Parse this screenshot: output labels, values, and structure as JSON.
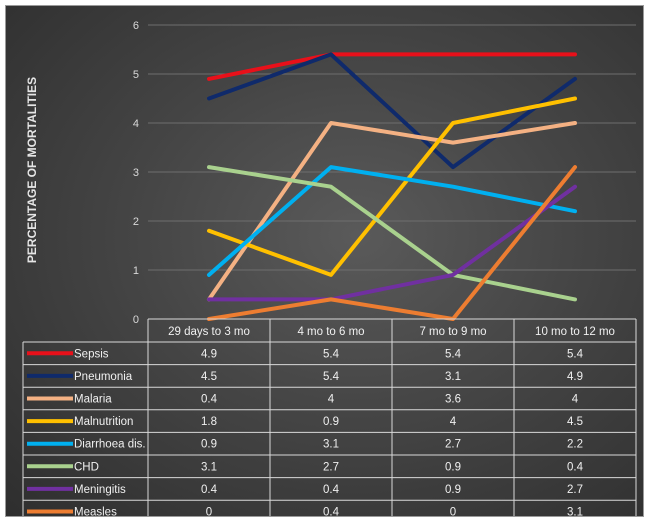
{
  "chart_data": {
    "type": "line",
    "title": "",
    "xlabel": "",
    "ylabel": "PERCENTAGE OF MORTALITIES",
    "ylim": [
      0,
      6
    ],
    "yticks": [
      0,
      1,
      2,
      3,
      4,
      5,
      6
    ],
    "grid": true,
    "legend": "data-table-below",
    "categories": [
      "29 days to 3 mo",
      "4 mo to 6 mo",
      "7 mo to 9 mo",
      "10 mo to 12 mo"
    ],
    "series": [
      {
        "name": "Sepsis",
        "color": "#e8101a",
        "values": [
          4.9,
          5.4,
          5.4,
          5.4
        ]
      },
      {
        "name": "Pneumonia",
        "color": "#0f2a6b",
        "values": [
          4.5,
          5.4,
          3.1,
          4.9
        ]
      },
      {
        "name": "Malaria",
        "color": "#f4b183",
        "values": [
          0.4,
          4,
          3.6,
          4
        ]
      },
      {
        "name": "Malnutrition",
        "color": "#ffc000",
        "values": [
          1.8,
          0.9,
          4,
          4.5
        ]
      },
      {
        "name": "Diarrhoea dis.",
        "color": "#00b0f0",
        "values": [
          0.9,
          3.1,
          2.7,
          2.2
        ]
      },
      {
        "name": "CHD",
        "color": "#a9d18e",
        "values": [
          3.1,
          2.7,
          0.9,
          0.4
        ]
      },
      {
        "name": "Meningitis",
        "color": "#7030a0",
        "values": [
          0.4,
          0.4,
          0.9,
          2.7
        ]
      },
      {
        "name": "Measles",
        "color": "#ed7d31",
        "values": [
          0,
          0.4,
          0,
          3.1
        ]
      }
    ]
  }
}
